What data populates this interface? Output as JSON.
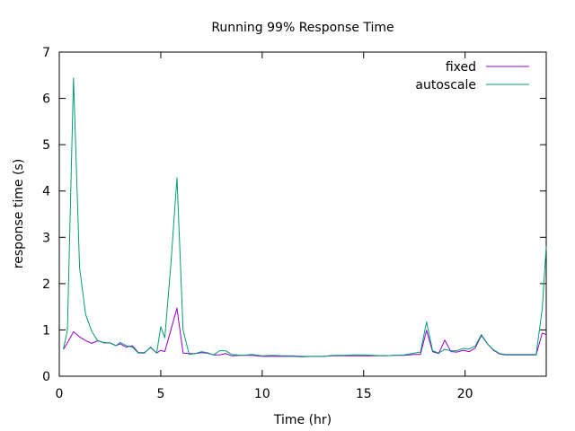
{
  "chart_data": {
    "type": "line",
    "title": "Running 99% Response Time",
    "xlabel": "Time (hr)",
    "ylabel": "response time (s)",
    "xlim": [
      0,
      24
    ],
    "ylim": [
      0,
      7
    ],
    "xticks": [
      0,
      5,
      10,
      15,
      20
    ],
    "yticks": [
      0,
      1,
      2,
      3,
      4,
      5,
      6,
      7
    ],
    "grid": false,
    "legend_position": "top-right",
    "series": [
      {
        "name": "fixed",
        "color": "#9400d3",
        "x": [
          0.2,
          0.4,
          0.7,
          1.0,
          1.3,
          1.6,
          1.9,
          2.2,
          2.5,
          2.8,
          3.0,
          3.3,
          3.6,
          3.9,
          4.2,
          4.5,
          4.8,
          5.0,
          5.2,
          5.5,
          5.8,
          6.1,
          6.4,
          6.7,
          7.0,
          7.3,
          7.6,
          7.9,
          8.2,
          8.5,
          9.0,
          9.5,
          10.0,
          10.5,
          11.0,
          11.5,
          12.0,
          12.5,
          13.0,
          13.5,
          14.0,
          14.5,
          15.0,
          15.5,
          16.0,
          16.5,
          17.0,
          17.5,
          17.8,
          18.1,
          18.4,
          18.7,
          19.0,
          19.3,
          19.6,
          19.9,
          20.2,
          20.5,
          20.8,
          21.1,
          21.4,
          21.7,
          22.0,
          22.3,
          22.6,
          22.9,
          23.2,
          23.5,
          23.8,
          24.0
        ],
        "y": [
          0.58,
          0.72,
          0.96,
          0.85,
          0.77,
          0.71,
          0.77,
          0.72,
          0.72,
          0.66,
          0.7,
          0.63,
          0.66,
          0.51,
          0.51,
          0.62,
          0.5,
          0.56,
          0.53,
          1.0,
          1.47,
          0.5,
          0.49,
          0.49,
          0.51,
          0.5,
          0.46,
          0.46,
          0.49,
          0.44,
          0.45,
          0.45,
          0.43,
          0.43,
          0.43,
          0.43,
          0.42,
          0.43,
          0.43,
          0.44,
          0.44,
          0.44,
          0.44,
          0.44,
          0.44,
          0.45,
          0.45,
          0.47,
          0.47,
          0.99,
          0.53,
          0.49,
          0.78,
          0.53,
          0.52,
          0.56,
          0.53,
          0.61,
          0.88,
          0.7,
          0.56,
          0.48,
          0.46,
          0.46,
          0.46,
          0.46,
          0.46,
          0.46,
          0.93,
          0.9
        ]
      },
      {
        "name": "autoscale",
        "color": "#009e73",
        "x": [
          0.2,
          0.4,
          0.7,
          1.0,
          1.3,
          1.6,
          1.9,
          2.2,
          2.5,
          2.8,
          3.0,
          3.3,
          3.6,
          3.9,
          4.2,
          4.5,
          4.8,
          5.0,
          5.2,
          5.5,
          5.8,
          6.1,
          6.4,
          6.7,
          7.0,
          7.3,
          7.6,
          7.9,
          8.2,
          8.5,
          9.0,
          9.5,
          10.0,
          10.5,
          11.0,
          11.5,
          12.0,
          12.5,
          13.0,
          13.5,
          14.0,
          14.5,
          15.0,
          15.5,
          16.0,
          16.5,
          17.0,
          17.5,
          17.8,
          18.1,
          18.4,
          18.7,
          19.0,
          19.3,
          19.6,
          19.9,
          20.2,
          20.5,
          20.8,
          21.1,
          21.4,
          21.7,
          22.0,
          22.3,
          22.6,
          22.9,
          23.2,
          23.5,
          23.8,
          24.0
        ],
        "y": [
          0.58,
          1.0,
          6.44,
          2.34,
          1.33,
          0.97,
          0.76,
          0.73,
          0.72,
          0.66,
          0.73,
          0.66,
          0.63,
          0.5,
          0.5,
          0.63,
          0.5,
          1.07,
          0.83,
          2.42,
          4.29,
          1.0,
          0.47,
          0.49,
          0.53,
          0.51,
          0.46,
          0.55,
          0.55,
          0.47,
          0.45,
          0.47,
          0.44,
          0.45,
          0.44,
          0.44,
          0.43,
          0.43,
          0.43,
          0.45,
          0.45,
          0.46,
          0.46,
          0.45,
          0.44,
          0.45,
          0.46,
          0.5,
          0.52,
          1.17,
          0.55,
          0.5,
          0.58,
          0.55,
          0.55,
          0.6,
          0.59,
          0.65,
          0.9,
          0.7,
          0.57,
          0.49,
          0.47,
          0.47,
          0.47,
          0.47,
          0.47,
          0.47,
          1.44,
          2.8
        ]
      }
    ]
  }
}
